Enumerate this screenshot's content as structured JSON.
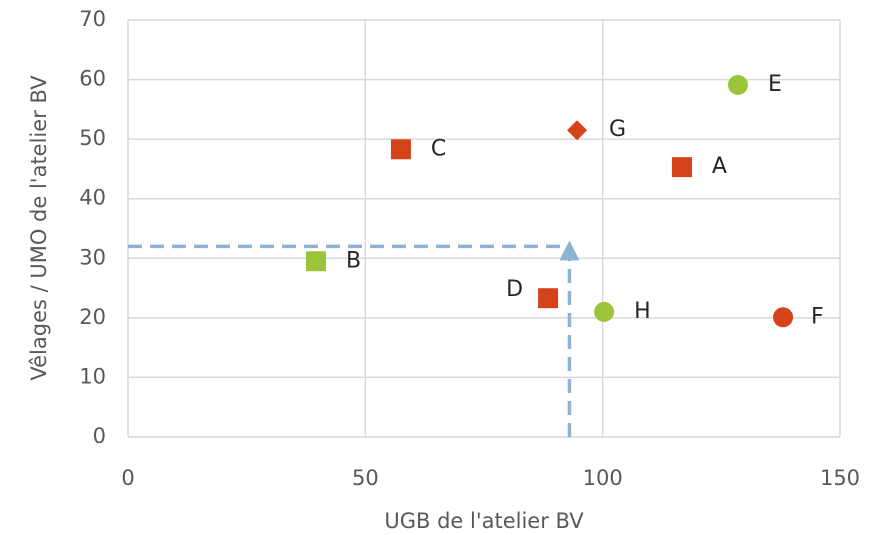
{
  "chart_data": {
    "type": "scatter",
    "x_label": "UGB de l'atelier BV",
    "y_label": "Vêlages / UMO de l'atelier BV",
    "labels": [
      "A",
      "B",
      "C",
      "D",
      "E",
      "F",
      "G",
      "H"
    ],
    "x": [
      116.7,
      39.6,
      57.5,
      88.5,
      128.5,
      138,
      94.6,
      100.3
    ],
    "values": [
      45.3,
      29.5,
      48.3,
      23.3,
      59.1,
      20.1,
      51.5,
      21
    ],
    "colors": [
      "#d5431b",
      "#9bc43a",
      "#d5431b",
      "#d5431b",
      "#9bc43a",
      "#d5431b",
      "#d5431b",
      "#9bc43a"
    ],
    "markers": [
      "square",
      "square",
      "square",
      "square",
      "circle",
      "circle",
      "diamond",
      "circle"
    ],
    "reference": {
      "x": 93,
      "y": 32,
      "color": "#8fb3d3"
    },
    "xlim": [
      0,
      150
    ],
    "xticks": [
      0,
      50,
      100,
      150
    ],
    "ylim": [
      0,
      70
    ],
    "yticks": [
      0,
      10,
      20,
      30,
      40,
      50,
      60,
      70
    ],
    "grid": true
  }
}
